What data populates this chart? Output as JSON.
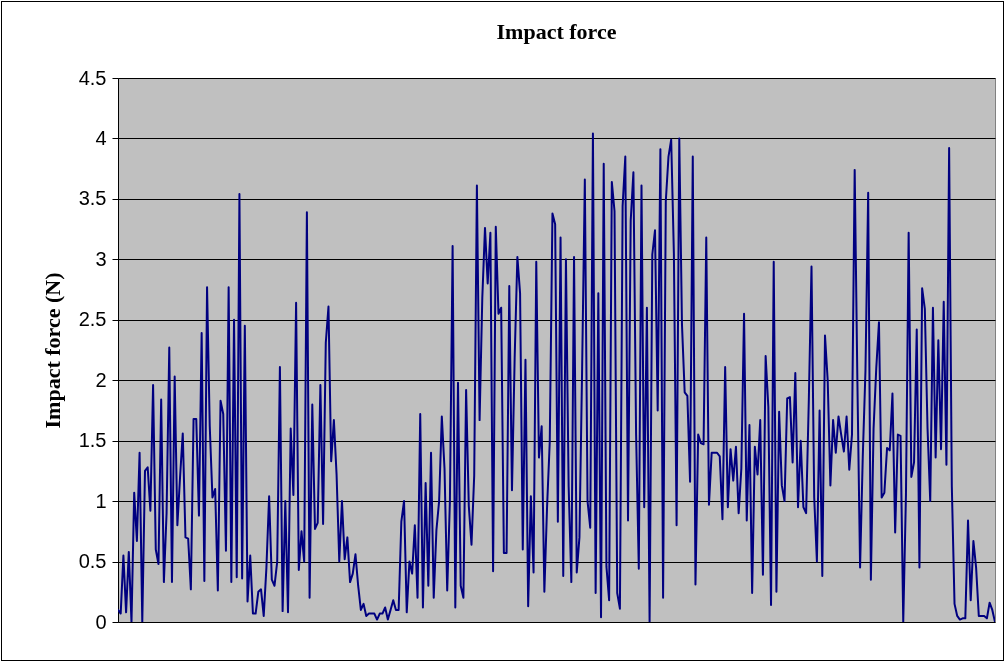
{
  "chart_data": {
    "type": "line",
    "title": "Impact force",
    "ylabel": "Impact force (N)",
    "ylim": [
      0,
      4.5
    ],
    "yticks": [
      0,
      0.5,
      1,
      1.5,
      2,
      2.5,
      3,
      3.5,
      4,
      4.5
    ],
    "grid": "y",
    "tick_labels": "y",
    "series": [
      {
        "color": "#000080",
        "values": [
          0.1,
          0.07,
          0.55,
          0.08,
          0.58,
          0.0,
          1.07,
          0.67,
          1.4,
          0.0,
          1.25,
          1.28,
          0.92,
          1.96,
          0.6,
          0.48,
          1.84,
          0.33,
          0.9,
          2.27,
          0.33,
          2.03,
          0.8,
          1.2,
          1.56,
          0.7,
          0.69,
          0.27,
          1.68,
          1.68,
          0.88,
          2.39,
          0.34,
          2.77,
          1.62,
          1.03,
          1.1,
          0.26,
          1.83,
          1.72,
          0.59,
          2.77,
          0.33,
          2.5,
          0.37,
          3.54,
          0.36,
          2.45,
          0.17,
          0.55,
          0.07,
          0.07,
          0.25,
          0.27,
          0.05,
          0.45,
          1.04,
          0.35,
          0.3,
          0.5,
          2.11,
          0.09,
          1.0,
          0.08,
          1.6,
          1.05,
          2.64,
          0.43,
          0.75,
          0.5,
          3.39,
          0.2,
          1.8,
          0.77,
          0.82,
          1.96,
          0.81,
          2.31,
          2.61,
          1.33,
          1.67,
          1.22,
          0.5,
          1.0,
          0.52,
          0.7,
          0.33,
          0.4,
          0.56,
          0.3,
          0.1,
          0.15,
          0.05,
          0.07,
          0.07,
          0.07,
          0.02,
          0.07,
          0.07,
          0.12,
          0.02,
          0.1,
          0.18,
          0.1,
          0.1,
          0.83,
          1.0,
          0.08,
          0.5,
          0.4,
          0.8,
          0.2,
          1.72,
          0.12,
          1.15,
          0.3,
          1.4,
          0.2,
          0.76,
          1.0,
          1.7,
          1.27,
          0.26,
          1.0,
          3.11,
          0.12,
          1.98,
          0.3,
          0.2,
          1.92,
          0.96,
          0.64,
          1.21,
          3.61,
          1.67,
          2.68,
          3.26,
          2.8,
          3.22,
          0.42,
          3.27,
          2.55,
          2.6,
          0.57,
          0.57,
          2.78,
          1.09,
          2.19,
          3.02,
          2.72,
          0.6,
          2.17,
          0.13,
          1.04,
          0.41,
          2.98,
          1.36,
          1.62,
          0.25,
          0.95,
          1.49,
          3.38,
          3.29,
          0.83,
          3.18,
          0.38,
          3.0,
          1.12,
          0.33,
          3.02,
          0.41,
          0.7,
          2.1,
          3.66,
          1.0,
          0.78,
          4.04,
          0.24,
          2.72,
          0.04,
          3.79,
          0.46,
          0.18,
          3.64,
          3.4,
          0.24,
          0.11,
          3.44,
          3.85,
          0.84,
          3.32,
          3.72,
          1.55,
          0.44,
          3.61,
          0.95,
          2.6,
          0.0,
          3.04,
          3.24,
          1.75,
          3.91,
          0.2,
          3.48,
          3.85,
          3.99,
          3.05,
          0.8,
          4.0,
          2.46,
          1.9,
          1.87,
          1.16,
          3.85,
          0.31,
          1.55,
          1.48,
          1.47,
          3.18,
          0.97,
          1.4,
          1.4,
          1.4,
          1.37,
          0.85,
          2.11,
          0.95,
          1.43,
          1.17,
          1.45,
          0.9,
          1.27,
          2.55,
          0.84,
          1.63,
          0.24,
          1.45,
          1.22,
          1.67,
          0.39,
          2.2,
          1.78,
          0.14,
          2.98,
          0.25,
          1.74,
          1.13,
          1.0,
          1.85,
          1.86,
          1.32,
          2.06,
          0.95,
          1.5,
          0.95,
          0.9,
          1.83,
          2.94,
          1.03,
          0.5,
          1.75,
          0.38,
          2.37,
          2.0,
          1.13,
          1.67,
          1.4,
          1.7,
          1.55,
          1.41,
          1.7,
          1.26,
          1.55,
          3.74,
          2.0,
          0.45,
          1.37,
          2.08,
          3.55,
          0.35,
          1.6,
          2.1,
          2.48,
          1.03,
          1.07,
          1.44,
          1.42,
          1.89,
          0.74,
          1.55,
          1.54,
          0.0,
          1.05,
          3.22,
          1.2,
          1.32,
          2.42,
          0.45,
          2.76,
          2.59,
          1.6,
          1.0,
          2.6,
          1.36,
          2.33,
          1.43,
          2.65,
          1.3,
          3.92,
          1.12,
          0.15,
          0.05,
          0.02,
          0.03,
          0.03,
          0.84,
          0.18,
          0.67,
          0.45,
          0.05,
          0.05,
          0.05,
          0.03,
          0.16,
          0.1,
          0.0
        ]
      }
    ]
  }
}
